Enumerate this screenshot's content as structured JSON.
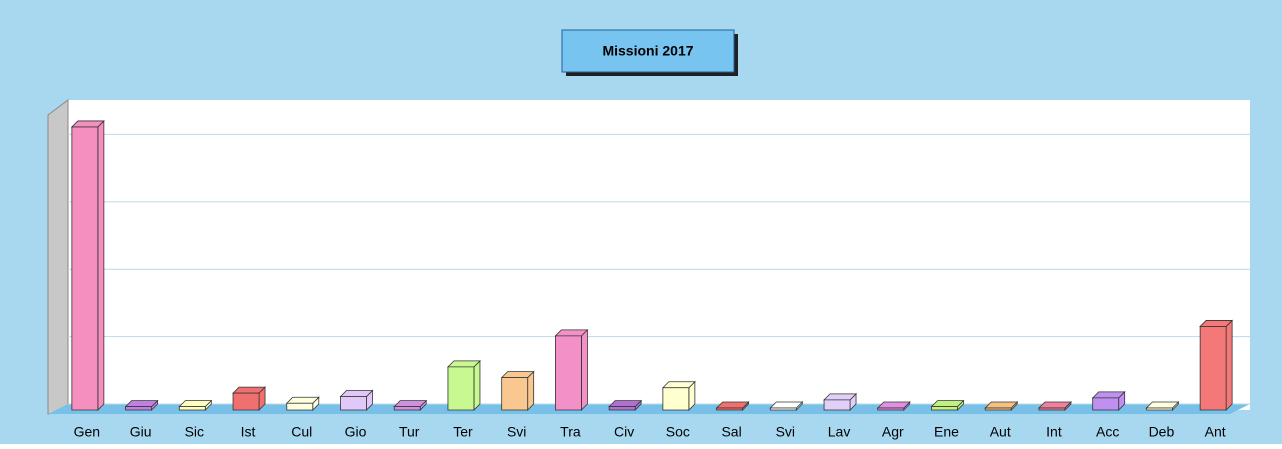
{
  "chart_data": {
    "type": "bar3d",
    "title": "Missioni 2017",
    "categories": [
      "Gen",
      "Giu",
      "Sic",
      "Ist",
      "Cul",
      "Gio",
      "Tur",
      "Ter",
      "Svi",
      "Tra",
      "Civ",
      "Soc",
      "Sal",
      "Svi",
      "Lav",
      "Agr",
      "Ene",
      "Aut",
      "Int",
      "Acc",
      "Deb",
      "Ant"
    ],
    "values": [
      42,
      0.5,
      0.5,
      2.5,
      1,
      2,
      0.5,
      6.4,
      4.8,
      11,
      0.5,
      3.3,
      0.3,
      0.3,
      1.5,
      0.3,
      0.5,
      0.3,
      0.3,
      1.8,
      0.3,
      12.4
    ],
    "colors": [
      "#f48fc0",
      "#c080e0",
      "#ffffc0",
      "#f07070",
      "#ffffe0",
      "#e0c8f8",
      "#d090e0",
      "#c8f890",
      "#f8c890",
      "#f490c8",
      "#b070d0",
      "#ffffd0",
      "#f07070",
      "#ffffff",
      "#e0d0f8",
      "#e090e0",
      "#c0f080",
      "#f8c080",
      "#f080a0",
      "#c090f0",
      "#ffffe0",
      "#f47878"
    ],
    "ylim": [
      0,
      46
    ],
    "yticks": [
      0,
      10,
      20,
      30,
      40
    ],
    "grid": true
  }
}
